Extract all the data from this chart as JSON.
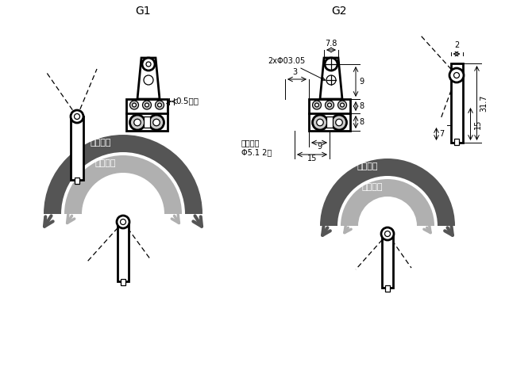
{
  "bg_color": "#ffffff",
  "lc": "#000000",
  "lw_thick": 2.0,
  "lw_thin": 0.9,
  "lw_dim": 0.7,
  "dark_gray": "#555555",
  "mid_gray": "#888888",
  "light_gray": "#b0b0b0",
  "g1_label": "G1",
  "g2_label": "G2",
  "label_05": "0.5最大",
  "label_2x": "2xΦ03.05",
  "label_3": "3",
  "label_7_8": "7.8",
  "label_9v": "9",
  "label_8a": "8",
  "label_8b": "8",
  "label_15_dim": "15",
  "label_9_dim": "9",
  "label_deep": "深孔两端",
  "label_hole": "Φ5.1 2深",
  "label_2": "2",
  "label_31_7": "31.7",
  "label_15": "15",
  "label_7": "7",
  "label_rev": "反向旋转",
  "label_fwd": "向前旋转"
}
